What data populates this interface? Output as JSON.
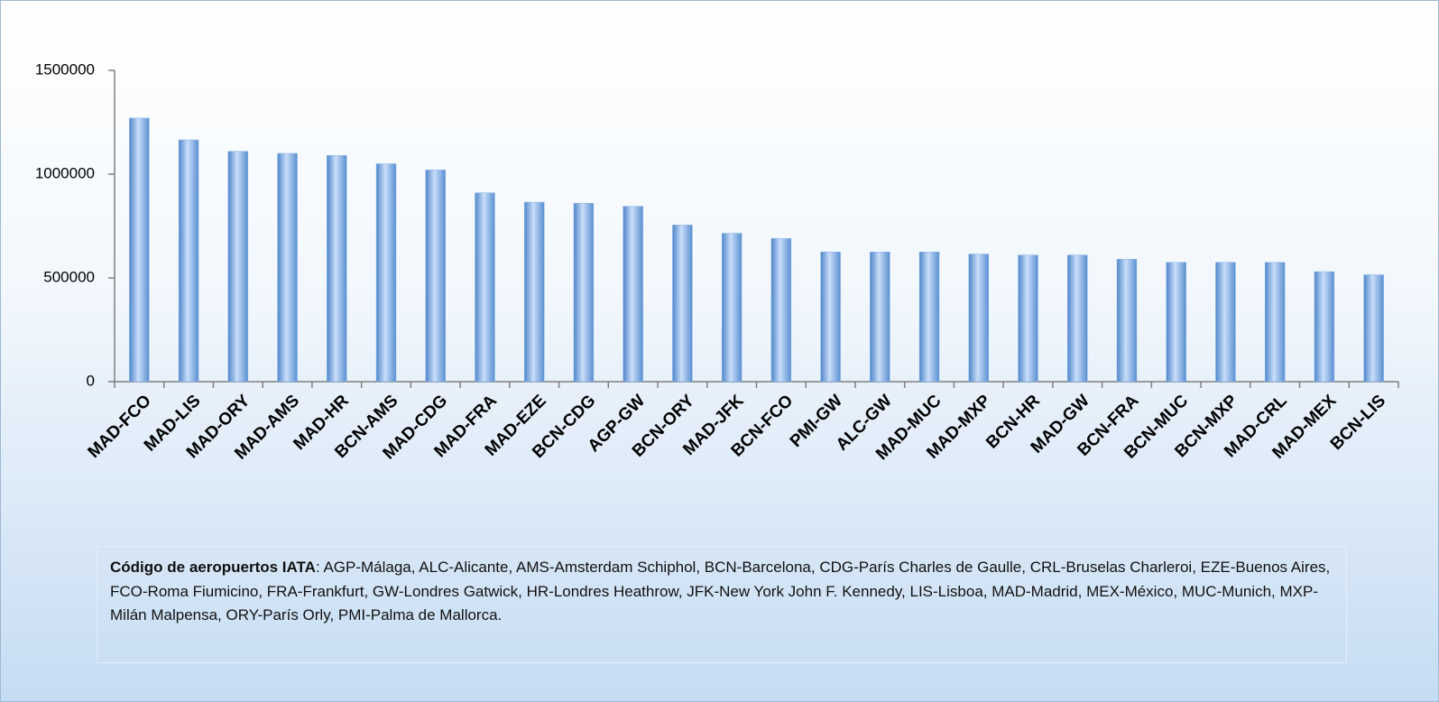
{
  "chart_data": {
    "type": "bar",
    "categories": [
      "MAD-FCO",
      "MAD-LIS",
      "MAD-ORY",
      "MAD-AMS",
      "MAD-HR",
      "BCN-AMS",
      "MAD-CDG",
      "MAD-FRA",
      "MAD-EZE",
      "BCN-CDG",
      "AGP-GW",
      "BCN-ORY",
      "MAD-JFK",
      "BCN-FCO",
      "PMI-GW",
      "ALC-GW",
      "MAD-MUC",
      "MAD-MXP",
      "BCN-HR",
      "MAD-GW",
      "BCN-FRA",
      "BCN-MUC",
      "BCN-MXP",
      "MAD-CRL",
      "MAD-MEX",
      "BCN-LIS"
    ],
    "values": [
      1270000,
      1165000,
      1110000,
      1100000,
      1090000,
      1050000,
      1020000,
      910000,
      865000,
      860000,
      845000,
      755000,
      715000,
      690000,
      625000,
      625000,
      625000,
      615000,
      610000,
      610000,
      590000,
      575000,
      575000,
      575000,
      530000,
      515000
    ],
    "color": "#7fb0e6",
    "ylim": [
      0,
      1500000
    ],
    "yticks": [
      0,
      500000,
      1000000,
      1500000
    ],
    "grid": false,
    "note_label": "Código de aeropuertos  IATA",
    "note_text": ": AGP-Málaga, ALC-Alicante, AMS-Amsterdam Schiphol, BCN-Barcelona, CDG-París Charles de Gaulle, CRL-Bruselas Charleroi, EZE-Buenos Aires, FCO-Roma Fiumicino, FRA-Frankfurt, GW-Londres Gatwick, HR-Londres Heathrow, JFK-New York John F. Kennedy, LIS-Lisboa, MAD-Madrid, MEX-México, MUC-Munich, MXP-Milán Malpensa, ORY-París Orly, PMI-Palma de Mallorca."
  }
}
